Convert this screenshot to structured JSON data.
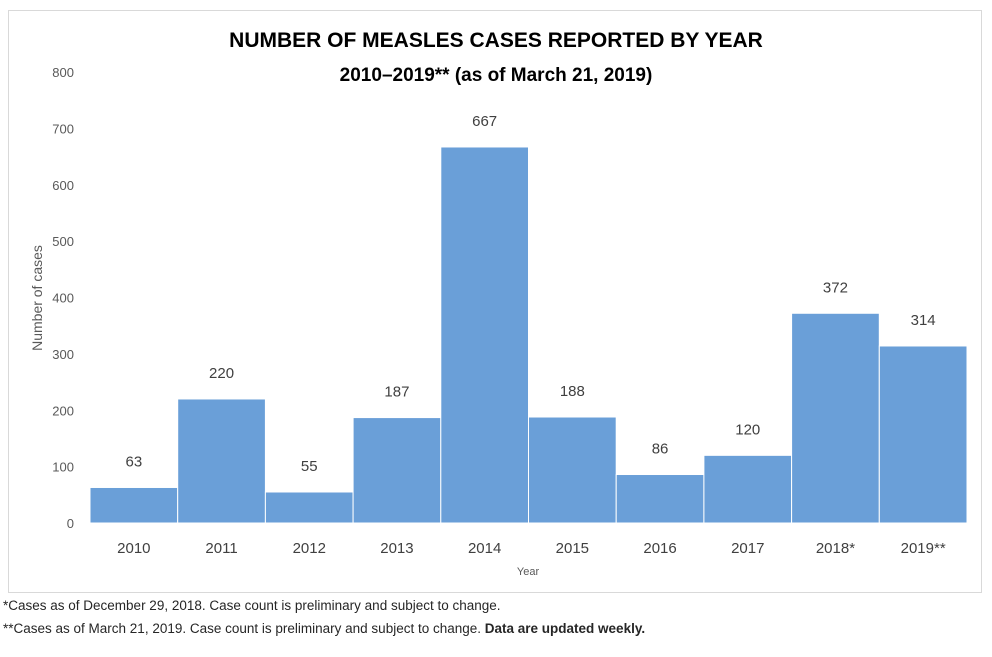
{
  "chart_data": {
    "type": "bar",
    "title": "NUMBER OF MEASLES CASES REPORTED BY YEAR",
    "subtitle": "2010–2019** (as of March 21, 2019)",
    "xlabel": "Year",
    "ylabel": "Number of cases",
    "categories": [
      "2010",
      "2011",
      "2012",
      "2013",
      "2014",
      "2015",
      "2016",
      "2017",
      "2018*",
      "2019**"
    ],
    "values": [
      63,
      220,
      55,
      187,
      667,
      188,
      86,
      120,
      372,
      314
    ],
    "ylim": [
      0,
      800
    ],
    "yticks": [
      0,
      100,
      200,
      300,
      400,
      500,
      600,
      700,
      800
    ],
    "grid": false,
    "bar_color": "#6a9fd8",
    "data_labels": true
  },
  "footnotes": {
    "line1": "*Cases as of December 29, 2018. Case count is preliminary and subject to change.",
    "line2_prefix": "**Cases as of March 21, 2019. Case count is preliminary and subject to change. ",
    "line2_bold": "Data are updated weekly."
  }
}
